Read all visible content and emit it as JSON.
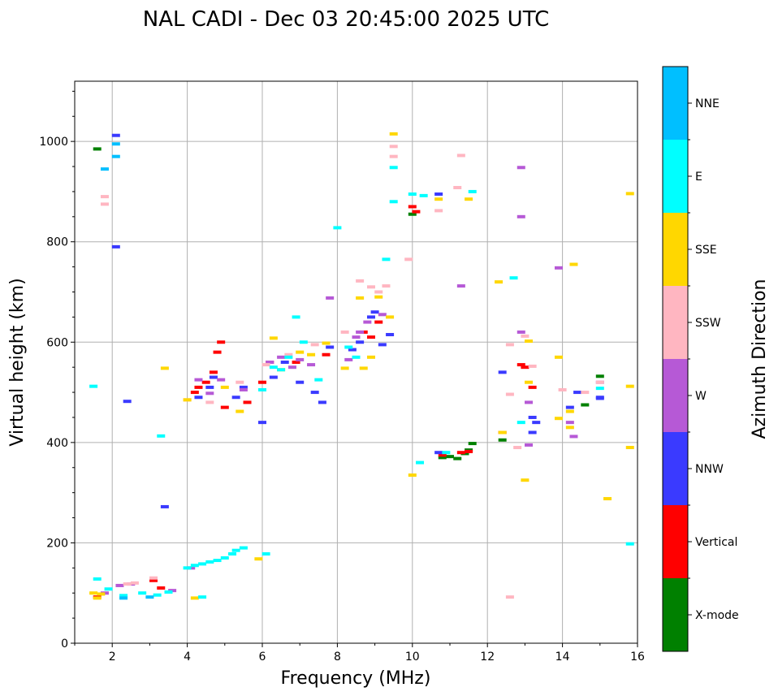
{
  "chart_data": {
    "type": "scatter",
    "title": "NAL CADI - Dec 03 20:45:00 2025 UTC",
    "xlabel": "Frequency (MHz)",
    "ylabel": "Virtual height (km)",
    "xlim": [
      1,
      16
    ],
    "ylim": [
      0,
      1120
    ],
    "xticks": [
      2,
      4,
      6,
      8,
      10,
      12,
      14,
      16
    ],
    "yticks": [
      0,
      200,
      400,
      600,
      800,
      1000
    ],
    "grid": true,
    "colorbar": {
      "label": "Azimuth Direction",
      "categories": [
        {
          "name": "X-mode",
          "color": "#008000"
        },
        {
          "name": "Vertical",
          "color": "#ff0000"
        },
        {
          "name": "NNW",
          "color": "#3a3aff"
        },
        {
          "name": "W",
          "color": "#b659d6"
        },
        {
          "name": "SSW",
          "color": "#ffb6c1"
        },
        {
          "name": "SSE",
          "color": "#ffd700"
        },
        {
          "name": "E",
          "color": "#00ffff"
        },
        {
          "name": "NNE",
          "color": "#00bfff"
        }
      ]
    },
    "series": [
      {
        "name": "X-mode",
        "points": [
          [
            1.6,
            985
          ],
          [
            10.0,
            855
          ],
          [
            10.8,
            370
          ],
          [
            11.0,
            372
          ],
          [
            11.2,
            368
          ],
          [
            11.4,
            378
          ],
          [
            11.5,
            385
          ],
          [
            11.6,
            398
          ],
          [
            12.4,
            405
          ],
          [
            14.6,
            475
          ],
          [
            15.0,
            532
          ]
        ]
      },
      {
        "name": "Vertical",
        "points": [
          [
            1.6,
            92
          ],
          [
            3.1,
            125
          ],
          [
            3.3,
            110
          ],
          [
            4.2,
            500
          ],
          [
            4.3,
            510
          ],
          [
            4.5,
            520
          ],
          [
            4.7,
            540
          ],
          [
            4.8,
            580
          ],
          [
            4.9,
            600
          ],
          [
            5.0,
            470
          ],
          [
            5.6,
            480
          ],
          [
            6.0,
            520
          ],
          [
            6.2,
            560
          ],
          [
            6.9,
            560
          ],
          [
            7.7,
            575
          ],
          [
            8.7,
            620
          ],
          [
            8.9,
            610
          ],
          [
            9.1,
            640
          ],
          [
            10.0,
            870
          ],
          [
            10.1,
            860
          ],
          [
            10.8,
            375
          ],
          [
            11.3,
            380
          ],
          [
            11.5,
            382
          ],
          [
            12.4,
            420
          ],
          [
            12.9,
            555
          ],
          [
            13.0,
            550
          ],
          [
            13.2,
            510
          ]
        ]
      },
      {
        "name": "NNW",
        "points": [
          [
            2.1,
            1012
          ],
          [
            2.1,
            790
          ],
          [
            2.4,
            482
          ],
          [
            3.4,
            272
          ],
          [
            4.3,
            490
          ],
          [
            4.6,
            510
          ],
          [
            4.7,
            530
          ],
          [
            5.3,
            490
          ],
          [
            5.5,
            510
          ],
          [
            6.0,
            440
          ],
          [
            6.3,
            530
          ],
          [
            6.6,
            560
          ],
          [
            7.0,
            520
          ],
          [
            7.4,
            500
          ],
          [
            7.6,
            480
          ],
          [
            7.8,
            590
          ],
          [
            8.4,
            585
          ],
          [
            8.6,
            600
          ],
          [
            8.9,
            650
          ],
          [
            9.0,
            660
          ],
          [
            9.2,
            595
          ],
          [
            9.4,
            615
          ],
          [
            10.7,
            380
          ],
          [
            10.7,
            895
          ],
          [
            12.4,
            540
          ],
          [
            13.2,
            420
          ],
          [
            13.2,
            450
          ],
          [
            13.3,
            440
          ],
          [
            14.2,
            470
          ],
          [
            14.4,
            500
          ],
          [
            15.0,
            490
          ],
          [
            15.0,
            488
          ]
        ]
      },
      {
        "name": "W",
        "points": [
          [
            1.8,
            100
          ],
          [
            2.2,
            115
          ],
          [
            2.5,
            118
          ],
          [
            3.6,
            105
          ],
          [
            4.1,
            150
          ],
          [
            4.3,
            525
          ],
          [
            4.6,
            498
          ],
          [
            4.9,
            525
          ],
          [
            5.5,
            505
          ],
          [
            6.2,
            560
          ],
          [
            6.5,
            570
          ],
          [
            6.8,
            550
          ],
          [
            7.0,
            565
          ],
          [
            7.3,
            555
          ],
          [
            7.8,
            688
          ],
          [
            8.3,
            565
          ],
          [
            8.5,
            610
          ],
          [
            8.6,
            620
          ],
          [
            8.8,
            640
          ],
          [
            9.2,
            655
          ],
          [
            11.3,
            712
          ],
          [
            12.9,
            948
          ],
          [
            12.9,
            850
          ],
          [
            12.9,
            620
          ],
          [
            13.1,
            480
          ],
          [
            13.1,
            395
          ],
          [
            13.9,
            748
          ],
          [
            14.2,
            440
          ],
          [
            14.3,
            412
          ],
          [
            15.0,
            520
          ]
        ]
      },
      {
        "name": "SSW",
        "points": [
          [
            1.8,
            890
          ],
          [
            1.8,
            875
          ],
          [
            2.4,
            118
          ],
          [
            2.6,
            120
          ],
          [
            3.1,
            130
          ],
          [
            4.0,
            485
          ],
          [
            4.6,
            480
          ],
          [
            5.4,
            520
          ],
          [
            6.1,
            555
          ],
          [
            6.7,
            575
          ],
          [
            7.4,
            595
          ],
          [
            8.2,
            620
          ],
          [
            8.6,
            722
          ],
          [
            8.9,
            710
          ],
          [
            9.1,
            700
          ],
          [
            9.3,
            712
          ],
          [
            9.5,
            990
          ],
          [
            9.5,
            970
          ],
          [
            9.9,
            765
          ],
          [
            10.7,
            862
          ],
          [
            11.2,
            908
          ],
          [
            11.3,
            972
          ],
          [
            12.6,
            595
          ],
          [
            12.6,
            496
          ],
          [
            12.8,
            390
          ],
          [
            13.0,
            612
          ],
          [
            13.2,
            552
          ],
          [
            14.0,
            505
          ],
          [
            14.6,
            500
          ],
          [
            15.0,
            520
          ],
          [
            12.6,
            92
          ]
        ]
      },
      {
        "name": "SSE",
        "points": [
          [
            1.5,
            100
          ],
          [
            1.6,
            90
          ],
          [
            1.7,
            98
          ],
          [
            3.4,
            548
          ],
          [
            4.0,
            485
          ],
          [
            4.2,
            90
          ],
          [
            5.0,
            510
          ],
          [
            5.4,
            462
          ],
          [
            5.9,
            168
          ],
          [
            6.3,
            608
          ],
          [
            6.5,
            545
          ],
          [
            7.0,
            580
          ],
          [
            7.3,
            575
          ],
          [
            7.7,
            598
          ],
          [
            8.2,
            548
          ],
          [
            8.6,
            688
          ],
          [
            8.7,
            548
          ],
          [
            8.9,
            570
          ],
          [
            9.1,
            690
          ],
          [
            9.4,
            650
          ],
          [
            9.5,
            1015
          ],
          [
            10.0,
            335
          ],
          [
            10.7,
            885
          ],
          [
            11.5,
            885
          ],
          [
            12.3,
            720
          ],
          [
            12.4,
            420
          ],
          [
            13.0,
            325
          ],
          [
            13.1,
            520
          ],
          [
            13.1,
            602
          ],
          [
            13.9,
            570
          ],
          [
            13.9,
            448
          ],
          [
            14.2,
            462
          ],
          [
            14.3,
            755
          ],
          [
            14.2,
            430
          ],
          [
            15.2,
            288
          ],
          [
            15.8,
            896
          ],
          [
            15.8,
            512
          ],
          [
            15.8,
            390
          ]
        ]
      },
      {
        "name": "E",
        "points": [
          [
            1.5,
            512
          ],
          [
            1.6,
            128
          ],
          [
            1.9,
            108
          ],
          [
            2.3,
            95
          ],
          [
            2.8,
            100
          ],
          [
            3.2,
            96
          ],
          [
            3.3,
            413
          ],
          [
            3.5,
            102
          ],
          [
            4.0,
            150
          ],
          [
            4.2,
            155
          ],
          [
            4.4,
            158
          ],
          [
            4.6,
            162
          ],
          [
            4.8,
            165
          ],
          [
            5.0,
            170
          ],
          [
            5.2,
            178
          ],
          [
            5.3,
            185
          ],
          [
            5.5,
            190
          ],
          [
            6.1,
            178
          ],
          [
            4.4,
            92
          ],
          [
            6.0,
            505
          ],
          [
            6.3,
            550
          ],
          [
            6.5,
            545
          ],
          [
            6.7,
            570
          ],
          [
            6.9,
            650
          ],
          [
            7.1,
            600
          ],
          [
            7.5,
            525
          ],
          [
            8.0,
            828
          ],
          [
            8.3,
            590
          ],
          [
            8.5,
            570
          ],
          [
            9.3,
            765
          ],
          [
            9.5,
            880
          ],
          [
            9.5,
            948
          ],
          [
            10.0,
            895
          ],
          [
            10.2,
            360
          ],
          [
            10.3,
            892
          ],
          [
            10.9,
            380
          ],
          [
            11.6,
            900
          ],
          [
            12.7,
            728
          ],
          [
            12.9,
            440
          ],
          [
            15.0,
            508
          ],
          [
            15.8,
            198
          ]
        ]
      },
      {
        "name": "NNE",
        "points": [
          [
            2.1,
            995
          ],
          [
            2.1,
            970
          ],
          [
            1.8,
            945
          ],
          [
            2.3,
            90
          ],
          [
            3.0,
            92
          ]
        ]
      }
    ]
  }
}
